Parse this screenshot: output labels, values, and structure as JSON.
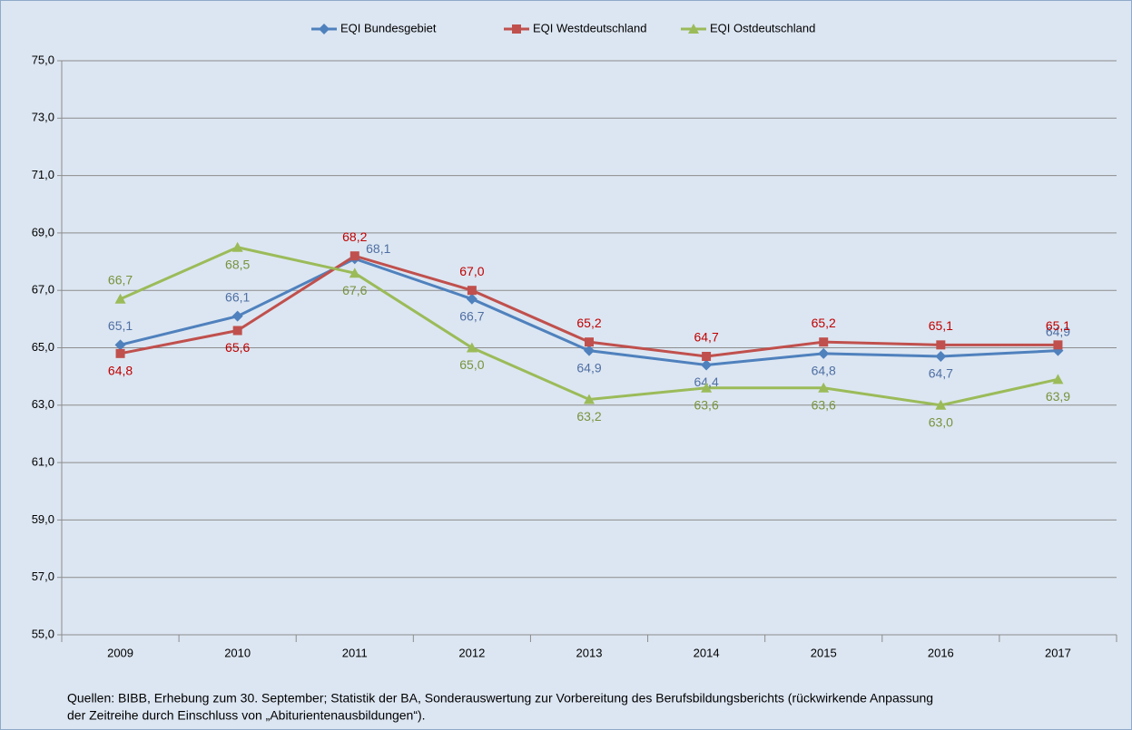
{
  "chart_data": {
    "type": "line",
    "categories": [
      "2009",
      "2010",
      "2011",
      "2012",
      "2013",
      "2014",
      "2015",
      "2016",
      "2017"
    ],
    "series": [
      {
        "name": "EQI Bundesgebiet",
        "color": "#4f81bd",
        "label_color": "#4f6fa3",
        "values": [
          65.1,
          66.1,
          68.1,
          66.7,
          64.9,
          64.4,
          64.8,
          64.7,
          64.9
        ],
        "value_labels": [
          "65,1",
          "66,1",
          "68,1",
          "66,7",
          "64,9",
          "64,4",
          "64,8",
          "64,7",
          "64,9"
        ]
      },
      {
        "name": "EQI Westdeutschland",
        "color": "#c0504d",
        "label_color": "#c00000",
        "values": [
          64.8,
          65.6,
          68.2,
          67.0,
          65.2,
          64.7,
          65.2,
          65.1,
          65.1
        ],
        "value_labels": [
          "64,8",
          "65,6",
          "68,2",
          "67,0",
          "65,2",
          "64,7",
          "65,2",
          "65,1",
          "65,1"
        ]
      },
      {
        "name": "EQI Ostdeutschland",
        "color": "#9bbb59",
        "label_color": "#77933c",
        "values": [
          66.7,
          68.5,
          67.6,
          65.0,
          63.2,
          63.6,
          63.6,
          63.0,
          63.9
        ],
        "value_labels": [
          "66,7",
          "68,5",
          "67,6",
          "65,0",
          "63,2",
          "63,6",
          "63,6",
          "63,0",
          "63,9"
        ]
      }
    ],
    "ylim": [
      55,
      75
    ],
    "yticks": [
      {
        "value": 55,
        "label": "55,0"
      },
      {
        "value": 57,
        "label": "57,0"
      },
      {
        "value": 59,
        "label": "59,0"
      },
      {
        "value": 61,
        "label": "61,0"
      },
      {
        "value": 63,
        "label": "63,0"
      },
      {
        "value": 65,
        "label": "65,0"
      },
      {
        "value": 67,
        "label": "67,0"
      },
      {
        "value": 69,
        "label": "69,0"
      },
      {
        "value": 71,
        "label": "71,0"
      },
      {
        "value": 73,
        "label": "73,0"
      },
      {
        "value": 75,
        "label": "75,0"
      }
    ],
    "grid": true,
    "legend": "top",
    "source": [
      "Quellen: BIBB, Erhebung zum 30. September; Statistik der BA, Sonderauswertung zur Vorbereitung des Berufsbildungsberichts (rückwirkende Anpassung",
      "der Zeitreihe durch Einschluss von „Abiturientenausbildungen“)."
    ]
  }
}
